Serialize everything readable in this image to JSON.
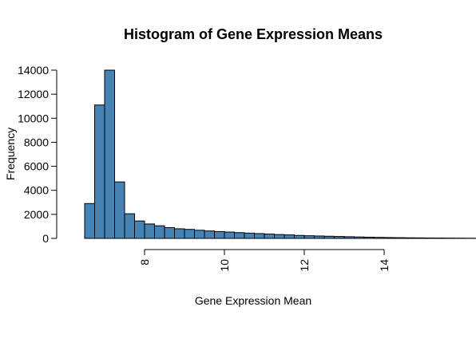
{
  "chart_data": {
    "type": "bar",
    "title": "Histogram of Gene Expression Means",
    "xlabel": "Gene Expression Mean",
    "ylabel": "Frequency",
    "bar_color": "#4682B4",
    "bin_width": 0.25,
    "bin_start": 6.5,
    "xlim": [
      6.5,
      15.0
    ],
    "ylim": [
      0,
      14000
    ],
    "x_ticks": [
      8,
      10,
      12,
      14
    ],
    "y_ticks": [
      0,
      2000,
      4000,
      6000,
      8000,
      10000,
      12000,
      14000
    ],
    "values": [
      2900,
      11100,
      14000,
      4700,
      2050,
      1450,
      1200,
      1050,
      900,
      800,
      750,
      680,
      620,
      570,
      530,
      480,
      440,
      400,
      360,
      320,
      290,
      250,
      220,
      200,
      180,
      160,
      140,
      120,
      100,
      85,
      70,
      60,
      50,
      42,
      35,
      30,
      25,
      20,
      15,
      10,
      5,
      3,
      2,
      2
    ]
  }
}
